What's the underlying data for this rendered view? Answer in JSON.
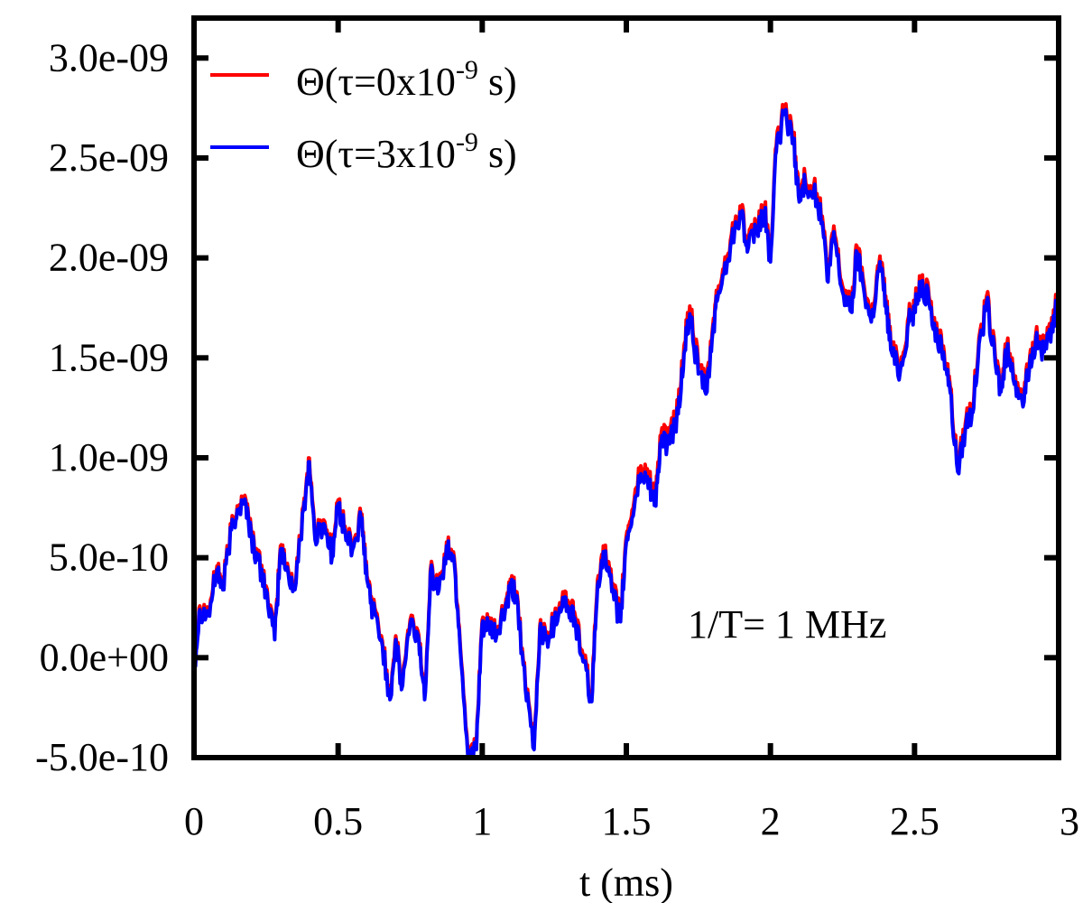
{
  "chart_data": {
    "type": "line",
    "title": "",
    "xlabel": "t (ms)",
    "ylabel": "",
    "xlim": [
      0,
      3
    ],
    "ylim": [
      -5e-10,
      3.2e-09
    ],
    "x_ticks": [
      0,
      0.5,
      1,
      1.5,
      2,
      2.5,
      3
    ],
    "x_tick_labels": [
      "0",
      "0.5",
      "1",
      "1.5",
      "2",
      "2.5",
      "3"
    ],
    "y_ticks": [
      -5e-10,
      0,
      5e-10,
      1e-09,
      1.5e-09,
      2e-09,
      2.5e-09,
      3e-09
    ],
    "y_tick_labels": [
      "-5.0e-10",
      "0.0e+00",
      "5.0e-10",
      "1.0e-09",
      "1.5e-09",
      "2.0e-09",
      "2.5e-09",
      "3.0e-09"
    ],
    "grid": false,
    "legend_position": "top-left",
    "annotation": "1/T= 1 MHz",
    "x": [
      0,
      0.02,
      0.05,
      0.08,
      0.1,
      0.13,
      0.15,
      0.18,
      0.2,
      0.22,
      0.25,
      0.28,
      0.3,
      0.32,
      0.35,
      0.38,
      0.4,
      0.42,
      0.45,
      0.48,
      0.5,
      0.52,
      0.55,
      0.58,
      0.6,
      0.62,
      0.65,
      0.68,
      0.7,
      0.72,
      0.75,
      0.78,
      0.8,
      0.82,
      0.85,
      0.88,
      0.9,
      0.92,
      0.95,
      0.98,
      1.0,
      1.02,
      1.05,
      1.08,
      1.1,
      1.12,
      1.15,
      1.18,
      1.2,
      1.22,
      1.25,
      1.28,
      1.3,
      1.32,
      1.35,
      1.38,
      1.4,
      1.42,
      1.45,
      1.48,
      1.5,
      1.52,
      1.55,
      1.58,
      1.6,
      1.62,
      1.65,
      1.68,
      1.7,
      1.72,
      1.75,
      1.78,
      1.8,
      1.82,
      1.85,
      1.88,
      1.9,
      1.92,
      1.95,
      1.98,
      2.0,
      2.02,
      2.05,
      2.08,
      2.1,
      2.12,
      2.15,
      2.18,
      2.2,
      2.22,
      2.25,
      2.28,
      2.3,
      2.32,
      2.35,
      2.38,
      2.4,
      2.42,
      2.45,
      2.48,
      2.5,
      2.52,
      2.55,
      2.58,
      2.6,
      2.62,
      2.65,
      2.68,
      2.7,
      2.72,
      2.75,
      2.78,
      2.8,
      2.82,
      2.85,
      2.88,
      2.9,
      2.92,
      2.95,
      2.98,
      3.0
    ],
    "series": [
      {
        "name": "Θ(τ=0x10-9 s)",
        "color": "#ff0000",
        "values": [
          -5e-11,
          2.5e-10,
          2.2e-10,
          4.5e-10,
          3.5e-10,
          6.5e-10,
          7.5e-10,
          7.8e-10,
          6e-10,
          5e-10,
          3.5e-10,
          1e-10,
          5.5e-10,
          4.5e-10,
          3.5e-10,
          7.5e-10,
          9.9e-10,
          6e-10,
          6.8e-10,
          5.2e-10,
          7.8e-10,
          6.5e-10,
          5.5e-10,
          7e-10,
          4e-10,
          2.5e-10,
          1e-10,
          -2e-10,
          1e-10,
          -1.5e-10,
          1.8e-10,
          1e-10,
          -2e-10,
          4.3e-10,
          3.5e-10,
          5.5e-10,
          5.2e-10,
          1.5e-10,
          -4.8e-10,
          -4.5e-10,
          1.8e-10,
          1.5e-10,
          1.2e-10,
          2.5e-10,
          3.5e-10,
          3.2e-10,
          -1.5e-10,
          -4.5e-10,
          1.5e-10,
          1e-10,
          1.8e-10,
          3.2e-10,
          2.5e-10,
          2.2e-10,
          0.0,
          -2e-10,
          3.8e-10,
          5.5e-10,
          3.5e-10,
          2e-10,
          6e-10,
          7.3e-10,
          9.5e-10,
          9e-10,
          8e-10,
          1.1e-09,
          1.1e-09,
          1.25e-09,
          1.55e-09,
          1.75e-09,
          1.45e-09,
          1.35e-09,
          1.65e-09,
          1.85e-09,
          2e-09,
          2.2e-09,
          2.25e-09,
          2.05e-09,
          2.15e-09,
          2.25e-09,
          2e-09,
          2.55e-09,
          2.75e-09,
          2.6e-09,
          2.3e-09,
          2.4e-09,
          2.35e-09,
          2.2e-09,
          1.9e-09,
          2.15e-09,
          1.85e-09,
          1.75e-09,
          2.05e-09,
          1.9e-09,
          1.7e-09,
          2e-09,
          1.8e-09,
          1.55e-09,
          1.45e-09,
          1.7e-09,
          1.75e-09,
          1.9e-09,
          1.8e-09,
          1.6e-09,
          1.55e-09,
          1.4e-09,
          9.5e-10,
          1.2e-09,
          1.25e-09,
          1.5e-09,
          1.8e-09,
          1.5e-09,
          1.35e-09,
          1.55e-09,
          1.4e-09,
          1.3e-09,
          1.5e-09,
          1.6e-09,
          1.55e-09,
          1.65e-09,
          1.85e-09
        ]
      },
      {
        "name": "Θ(τ=3x10-9 s)",
        "color": "#0000ff",
        "values": [
          -6e-11,
          2.4e-10,
          2.1e-10,
          4.4e-10,
          3.4e-10,
          6.4e-10,
          7.4e-10,
          7.7e-10,
          5.9e-10,
          4.9e-10,
          3.4e-10,
          9e-11,
          5.4e-10,
          4.4e-10,
          3.4e-10,
          7.4e-10,
          9.8e-10,
          5.9e-10,
          6.7e-10,
          5.1e-10,
          7.7e-10,
          6.4e-10,
          5.4e-10,
          6.9e-10,
          3.9e-10,
          2.4e-10,
          9e-11,
          -2.1e-10,
          9e-11,
          -1.6e-10,
          1.7e-10,
          9e-11,
          -2.1e-10,
          4.2e-10,
          3.4e-10,
          5.4e-10,
          5.1e-10,
          1.4e-10,
          -4.9e-10,
          -4.6e-10,
          1.7e-10,
          1.4e-10,
          1.1e-10,
          2.4e-10,
          3.4e-10,
          3.1e-10,
          -1.6e-10,
          -4.6e-10,
          1.4e-10,
          9e-11,
          1.7e-10,
          3e-10,
          2.3e-10,
          2e-10,
          -2e-11,
          -2.2e-10,
          3.6e-10,
          5.3e-10,
          3.3e-10,
          1.8e-10,
          5.8e-10,
          7e-10,
          9.2e-10,
          8.7e-10,
          7.7e-10,
          1.07e-09,
          1.07e-09,
          1.22e-09,
          1.52e-09,
          1.72e-09,
          1.42e-09,
          1.33e-09,
          1.63e-09,
          1.83e-09,
          1.98e-09,
          2.18e-09,
          2.23e-09,
          2.03e-09,
          2.13e-09,
          2.23e-09,
          1.98e-09,
          2.53e-09,
          2.73e-09,
          2.58e-09,
          2.28e-09,
          2.38e-09,
          2.33e-09,
          2.18e-09,
          1.88e-09,
          2.13e-09,
          1.83e-09,
          1.73e-09,
          2.03e-09,
          1.88e-09,
          1.68e-09,
          1.98e-09,
          1.78e-09,
          1.53e-09,
          1.43e-09,
          1.68e-09,
          1.73e-09,
          1.88e-09,
          1.78e-09,
          1.58e-09,
          1.53e-09,
          1.38e-09,
          9.3e-10,
          1.18e-09,
          1.23e-09,
          1.48e-09,
          1.78e-09,
          1.48e-09,
          1.33e-09,
          1.53e-09,
          1.38e-09,
          1.28e-09,
          1.48e-09,
          1.58e-09,
          1.53e-09,
          1.63e-09,
          1.83e-09
        ]
      }
    ]
  },
  "legend": {
    "items": [
      {
        "prefix": "Θ(τ=0x10",
        "sup": "-9",
        "suffix": " s)",
        "color": "#ff0000"
      },
      {
        "prefix": "Θ(τ=3x10",
        "sup": "-9",
        "suffix": " s)",
        "color": "#0000ff"
      }
    ]
  }
}
